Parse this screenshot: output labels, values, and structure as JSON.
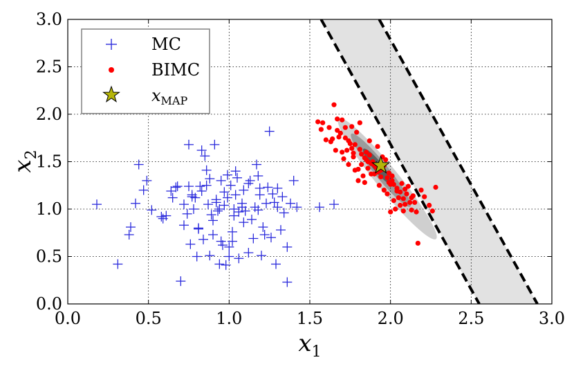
{
  "chart_data": {
    "type": "scatter",
    "title": "",
    "xlabel": "x",
    "xlabel_sub": "1",
    "ylabel": "x",
    "ylabel_sub": "2",
    "xlim": [
      0.0,
      3.0
    ],
    "ylim": [
      0.0,
      3.0
    ],
    "xticks": [
      0.0,
      0.5,
      1.0,
      1.5,
      2.0,
      2.5,
      3.0
    ],
    "yticks": [
      0.0,
      0.5,
      1.0,
      1.5,
      2.0,
      2.5,
      3.0
    ],
    "xtick_labels": [
      "0.0",
      "0.5",
      "1.0",
      "1.5",
      "2.0",
      "2.5",
      "3.0"
    ],
    "ytick_labels": [
      "0.0",
      "0.5",
      "1.0",
      "1.5",
      "2.0",
      "2.5",
      "3.0"
    ],
    "grid": true,
    "legend_position": "top-left",
    "legend": [
      {
        "name": "MC",
        "marker": "plus",
        "color": "#2b2bdc"
      },
      {
        "name": "BIMC",
        "marker": "dot",
        "color": "#ff0000"
      },
      {
        "name": "x",
        "sub": "MAP",
        "marker": "star",
        "color": "#b5b50a"
      }
    ],
    "band_lines": [
      {
        "style": "dashed",
        "color": "#000000",
        "points": [
          [
            1.57,
            3.0
          ],
          [
            2.55,
            0.0
          ]
        ]
      },
      {
        "style": "dashed",
        "color": "#000000",
        "points": [
          [
            1.93,
            3.0
          ],
          [
            2.91,
            0.0
          ]
        ]
      }
    ],
    "band_fill": {
      "color": "#e2e2e2",
      "polygon": [
        [
          1.57,
          3.0
        ],
        [
          1.93,
          3.0
        ],
        [
          2.91,
          0.0
        ],
        [
          2.55,
          0.0
        ]
      ]
    },
    "density_contours": [
      {
        "color": "#cfcfcf",
        "center": [
          1.98,
          1.32
        ],
        "rx": 0.48,
        "ry": 0.07,
        "angle_deg": 51
      },
      {
        "color": "#9b9b9b",
        "center": [
          1.94,
          1.41
        ],
        "rx": 0.29,
        "ry": 0.045,
        "angle_deg": 51
      },
      {
        "color": "#5e5e5e",
        "center": [
          1.92,
          1.45
        ],
        "rx": 0.14,
        "ry": 0.03,
        "angle_deg": 51
      }
    ],
    "series": [
      {
        "name": "MC",
        "marker": "plus",
        "color": "#2b2bdc",
        "x": [
          0.18,
          0.31,
          0.38,
          0.39,
          0.42,
          0.44,
          0.47,
          0.49,
          0.52,
          0.59,
          0.61,
          0.64,
          0.65,
          0.68,
          0.7,
          0.72,
          0.74,
          0.75,
          0.76,
          0.77,
          0.78,
          0.8,
          0.81,
          0.82,
          0.83,
          0.84,
          0.85,
          0.86,
          0.87,
          0.88,
          0.89,
          0.9,
          0.91,
          0.92,
          0.93,
          0.94,
          0.95,
          0.96,
          0.97,
          0.98,
          0.99,
          1.0,
          1.01,
          1.02,
          1.03,
          1.04,
          1.05,
          1.06,
          1.08,
          1.09,
          1.1,
          1.12,
          1.13,
          1.15,
          1.17,
          1.18,
          1.19,
          1.2,
          1.21,
          1.23,
          1.25,
          1.27,
          1.29,
          1.3,
          1.32,
          1.34,
          1.36,
          1.38,
          1.4,
          1.42,
          1.56,
          1.65,
          0.72,
          0.79,
          0.83,
          0.88,
          0.92,
          0.97,
          1.03,
          1.09,
          1.14,
          1.19,
          1.24,
          1.33,
          0.75,
          0.81,
          0.94,
          1.0,
          1.06,
          1.12,
          1.22,
          1.3,
          0.86,
          0.99,
          1.04,
          1.16,
          1.26,
          1.36,
          0.9,
          1.18,
          1.02,
          0.95,
          1.08,
          1.28,
          0.67,
          0.77,
          0.58
        ],
        "y": [
          1.05,
          0.42,
          0.73,
          0.81,
          1.06,
          1.47,
          1.2,
          1.3,
          0.99,
          0.9,
          0.93,
          1.19,
          1.12,
          1.24,
          0.24,
          1.05,
          0.95,
          1.68,
          0.63,
          1.15,
          1.0,
          0.5,
          0.8,
          1.24,
          1.62,
          0.68,
          1.56,
          1.25,
          1.05,
          0.51,
          0.94,
          0.88,
          1.68,
          1.1,
          0.98,
          0.42,
          1.3,
          0.62,
          1.18,
          0.41,
          1.36,
          0.5,
          1.25,
          0.76,
          1.0,
          1.15,
          1.33,
          0.48,
          1.06,
          1.2,
          0.98,
          0.54,
          1.3,
          0.69,
          1.47,
          0.99,
          1.22,
          0.51,
          0.81,
          1.06,
          1.82,
          1.16,
          0.42,
          1.22,
          0.78,
          0.96,
          0.23,
          1.06,
          1.3,
          1.02,
          1.02,
          1.05,
          0.83,
          1.12,
          1.19,
          1.32,
          1.07,
          1.04,
          0.93,
          0.86,
          0.89,
          1.15,
          1.23,
          1.13,
          1.24,
          0.79,
          1.0,
          0.6,
          0.97,
          1.27,
          0.73,
          1.02,
          1.41,
          1.12,
          1.4,
          1.02,
          0.7,
          0.6,
          0.73,
          1.35,
          0.66,
          0.66,
          1.02,
          1.07,
          1.23,
          1.13,
          0.92
        ]
      },
      {
        "name": "BIMC",
        "marker": "dot",
        "color": "#ff0000",
        "x": [
          1.55,
          1.57,
          1.58,
          1.6,
          1.62,
          1.64,
          1.65,
          1.66,
          1.67,
          1.68,
          1.69,
          1.7,
          1.71,
          1.72,
          1.73,
          1.74,
          1.75,
          1.76,
          1.77,
          1.78,
          1.79,
          1.8,
          1.81,
          1.82,
          1.83,
          1.84,
          1.85,
          1.86,
          1.87,
          1.88,
          1.89,
          1.9,
          1.91,
          1.92,
          1.93,
          1.94,
          1.95,
          1.96,
          1.97,
          1.98,
          1.99,
          2.0,
          2.01,
          2.02,
          2.03,
          2.04,
          2.05,
          2.06,
          2.07,
          2.08,
          2.09,
          2.1,
          2.11,
          2.12,
          2.13,
          2.14,
          2.15,
          2.17,
          2.19,
          2.21,
          2.24,
          2.26,
          2.28,
          1.7,
          1.74,
          1.78,
          1.82,
          1.86,
          1.9,
          1.94,
          1.98,
          2.02,
          2.06,
          1.67,
          1.72,
          1.76,
          1.8,
          1.84,
          1.88,
          1.92,
          1.96,
          2.0,
          2.04,
          2.08,
          1.63,
          1.77,
          1.85,
          1.93,
          2.01,
          2.09,
          2.16,
          1.81,
          1.87,
          1.99,
          2.13
        ],
        "y": [
          1.92,
          1.84,
          1.91,
          1.73,
          1.86,
          1.74,
          2.1,
          1.62,
          1.95,
          1.76,
          1.8,
          1.6,
          1.53,
          1.86,
          1.62,
          1.47,
          1.69,
          1.87,
          1.55,
          1.41,
          1.81,
          1.3,
          1.63,
          1.47,
          1.35,
          1.28,
          1.6,
          1.43,
          1.57,
          1.37,
          1.5,
          1.37,
          1.44,
          1.66,
          1.25,
          1.41,
          1.55,
          1.2,
          1.52,
          1.16,
          1.38,
          0.97,
          1.3,
          1.09,
          1.0,
          1.22,
          1.12,
          1.04,
          1.27,
          0.98,
          1.21,
          1.16,
          1.24,
          1.07,
          0.99,
          1.14,
          1.07,
          0.64,
          1.2,
          1.13,
          1.04,
          0.98,
          1.23,
          1.94,
          1.72,
          1.68,
          1.58,
          1.5,
          1.46,
          1.34,
          1.33,
          1.26,
          1.18,
          1.83,
          1.75,
          1.64,
          1.42,
          1.54,
          1.48,
          1.39,
          1.46,
          1.26,
          1.19,
          1.11,
          1.71,
          1.59,
          1.52,
          1.4,
          1.35,
          1.05,
          0.97,
          1.91,
          1.72,
          1.28,
          1.12
        ]
      }
    ],
    "map_point": {
      "name": "x_MAP",
      "x": 1.94,
      "y": 1.46,
      "marker": "star",
      "color": "#b5b50a"
    }
  }
}
